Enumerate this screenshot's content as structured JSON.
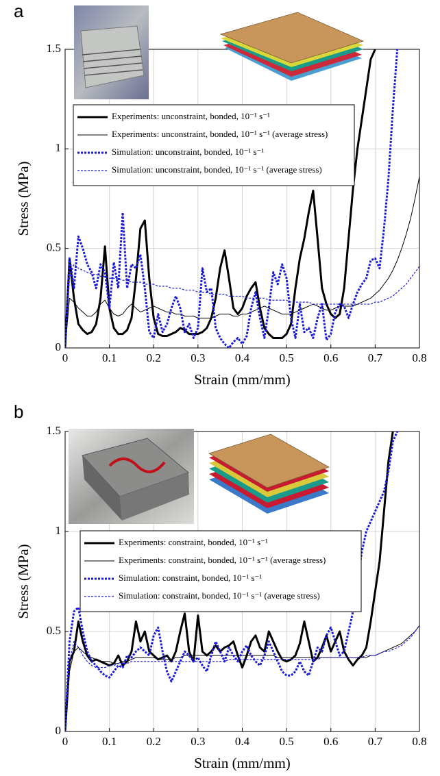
{
  "chart_data": [
    {
      "type": "line",
      "panel_label": "a",
      "xlabel": "Strain (mm/mm)",
      "ylabel": "Stress (MPa)",
      "xlim": [
        0,
        0.8
      ],
      "ylim": [
        0,
        1.5
      ],
      "xticks": [
        0,
        0.1,
        0.2,
        0.3,
        0.4,
        0.5,
        0.6,
        0.7,
        0.8
      ],
      "yticks": [
        0,
        0.5,
        1,
        1.5
      ],
      "grid": true,
      "legend": "upper left",
      "x": [
        0,
        0.01,
        0.02,
        0.03,
        0.04,
        0.05,
        0.06,
        0.07,
        0.08,
        0.09,
        0.1,
        0.11,
        0.12,
        0.13,
        0.14,
        0.15,
        0.16,
        0.17,
        0.18,
        0.19,
        0.2,
        0.21,
        0.22,
        0.23,
        0.24,
        0.25,
        0.26,
        0.27,
        0.28,
        0.29,
        0.3,
        0.31,
        0.32,
        0.33,
        0.34,
        0.35,
        0.36,
        0.37,
        0.38,
        0.39,
        0.4,
        0.41,
        0.42,
        0.43,
        0.44,
        0.45,
        0.46,
        0.47,
        0.48,
        0.49,
        0.5,
        0.51,
        0.52,
        0.53,
        0.54,
        0.55,
        0.56,
        0.57,
        0.58,
        0.59,
        0.6,
        0.61,
        0.62,
        0.63,
        0.64,
        0.65,
        0.66,
        0.67,
        0.68,
        0.69,
        0.7,
        0.71,
        0.72,
        0.73,
        0.74,
        0.75,
        0.76,
        0.77,
        0.78,
        0.79,
        0.8
      ],
      "series": [
        {
          "name": "Experiments: unconstraint, bonded, 10⁻¹ s⁻¹",
          "color": "#000000",
          "line_width": 3,
          "dashed": false,
          "values": [
            0,
            0.45,
            0.25,
            0.12,
            0.09,
            0.07,
            0.08,
            0.12,
            0.25,
            0.51,
            0.2,
            0.1,
            0.07,
            0.07,
            0.09,
            0.15,
            0.35,
            0.6,
            0.64,
            0.35,
            0.15,
            0.07,
            0.06,
            0.06,
            0.07,
            0.08,
            0.1,
            0.09,
            0.07,
            0.07,
            0.07,
            0.08,
            0.1,
            0.15,
            0.25,
            0.4,
            0.49,
            0.35,
            0.2,
            0.17,
            0.2,
            0.26,
            0.3,
            0.33,
            0.2,
            0.1,
            0.07,
            0.05,
            0.05,
            0.05,
            0.07,
            0.12,
            0.3,
            0.45,
            0.55,
            0.68,
            0.79,
            0.55,
            0.3,
            0.22,
            0.17,
            0.15,
            0.17,
            0.3,
            0.55,
            0.8,
            1.0,
            1.15,
            1.3,
            1.45,
            1.5,
            null,
            null,
            null,
            null,
            null,
            null,
            null,
            null,
            null,
            null
          ]
        },
        {
          "name": "Experiments: unconstraint, bonded, 10⁻¹ s⁻¹ (average stress)",
          "color": "#000000",
          "line_width": 1,
          "dashed": false,
          "values": [
            0,
            0.25,
            0.23,
            0.2,
            0.18,
            0.16,
            0.16,
            0.18,
            0.22,
            0.24,
            0.2,
            0.17,
            0.16,
            0.17,
            0.2,
            0.22,
            0.2,
            0.18,
            0.19,
            0.2,
            0.21,
            0.2,
            0.19,
            0.18,
            0.18,
            0.17,
            0.17,
            0.16,
            0.16,
            0.16,
            0.15,
            0.15,
            0.15,
            0.15,
            0.16,
            0.17,
            0.17,
            0.17,
            0.16,
            0.16,
            0.17,
            0.17,
            0.18,
            0.19,
            0.2,
            0.21,
            0.2,
            0.19,
            0.18,
            0.17,
            0.17,
            0.17,
            0.18,
            0.19,
            0.2,
            0.21,
            0.22,
            0.21,
            0.2,
            0.19,
            0.19,
            0.2,
            0.21,
            0.21,
            0.21,
            0.21,
            0.22,
            0.23,
            0.24,
            0.25,
            0.27,
            0.29,
            0.32,
            0.35,
            0.39,
            0.44,
            0.5,
            0.57,
            0.65,
            0.75,
            0.86
          ]
        },
        {
          "name": "Simulation: unconstraint, bonded, 10⁻¹ s⁻¹",
          "color": "#1a1adb",
          "line_width": 3,
          "dashed": true,
          "values": [
            0,
            0.45,
            0.3,
            0.56,
            0.5,
            0.42,
            0.38,
            0.3,
            0.42,
            0.38,
            0.2,
            0.43,
            0.3,
            0.68,
            0.3,
            0.42,
            0.4,
            0.47,
            0.3,
            0.08,
            0.05,
            0.17,
            0.08,
            0.12,
            0.2,
            0.26,
            0.2,
            0.08,
            0.12,
            0.05,
            0.1,
            0.4,
            0.28,
            0.3,
            0.1,
            0.05,
            0.02,
            0,
            0.03,
            0.05,
            0.02,
            0.06,
            0.2,
            0.28,
            0.15,
            0.05,
            0.2,
            0.38,
            0.32,
            0.42,
            0.35,
            0.15,
            0.05,
            0.22,
            0.08,
            0.1,
            0.05,
            0.15,
            0.22,
            0.04,
            0.07,
            0.18,
            0.22,
            0.21,
            0.15,
            0.22,
            0.28,
            0.32,
            0.35,
            0.44,
            0.45,
            0.4,
            0.6,
            0.85,
            1.2,
            1.5,
            null,
            null,
            null,
            null,
            null
          ]
        },
        {
          "name": "Simulation: unconstraint, bonded, 10⁻¹ s⁻¹ (average stress)",
          "color": "#1a1adb",
          "line_width": 1.2,
          "dashed": true,
          "values": [
            0,
            0.35,
            0.42,
            0.4,
            0.39,
            0.38,
            0.37,
            0.37,
            0.36,
            0.36,
            0.35,
            0.35,
            0.35,
            0.34,
            0.34,
            0.33,
            0.33,
            0.33,
            0.32,
            0.32,
            0.32,
            0.31,
            0.31,
            0.31,
            0.3,
            0.3,
            0.3,
            0.29,
            0.29,
            0.29,
            0.28,
            0.28,
            0.28,
            0.27,
            0.27,
            0.27,
            0.27,
            0.26,
            0.26,
            0.26,
            0.26,
            0.25,
            0.25,
            0.25,
            0.25,
            0.25,
            0.24,
            0.24,
            0.24,
            0.24,
            0.24,
            0.23,
            0.23,
            0.23,
            0.23,
            0.23,
            0.22,
            0.22,
            0.22,
            0.22,
            0.22,
            0.22,
            0.22,
            0.22,
            0.22,
            0.22,
            0.22,
            0.22,
            0.22,
            0.22,
            0.23,
            0.23,
            0.24,
            0.25,
            0.26,
            0.28,
            0.3,
            0.32,
            0.35,
            0.38,
            0.41
          ]
        }
      ]
    },
    {
      "type": "line",
      "panel_label": "b",
      "xlabel": "Strain (mm/mm)",
      "ylabel": "Stress (MPa)",
      "xlim": [
        0,
        0.8
      ],
      "ylim": [
        0,
        1.5
      ],
      "xticks": [
        0,
        0.1,
        0.2,
        0.3,
        0.4,
        0.5,
        0.6,
        0.7,
        0.8
      ],
      "yticks": [
        0,
        0.5,
        1,
        1.5
      ],
      "grid": true,
      "legend": "upper left",
      "x": [
        0,
        0.01,
        0.02,
        0.03,
        0.04,
        0.05,
        0.06,
        0.07,
        0.08,
        0.09,
        0.1,
        0.11,
        0.12,
        0.13,
        0.14,
        0.15,
        0.16,
        0.17,
        0.18,
        0.19,
        0.2,
        0.21,
        0.22,
        0.23,
        0.24,
        0.25,
        0.26,
        0.27,
        0.28,
        0.29,
        0.3,
        0.31,
        0.32,
        0.33,
        0.34,
        0.35,
        0.36,
        0.37,
        0.38,
        0.39,
        0.4,
        0.41,
        0.42,
        0.43,
        0.44,
        0.45,
        0.46,
        0.47,
        0.48,
        0.49,
        0.5,
        0.51,
        0.52,
        0.53,
        0.54,
        0.55,
        0.56,
        0.57,
        0.58,
        0.59,
        0.6,
        0.61,
        0.62,
        0.63,
        0.64,
        0.65,
        0.66,
        0.67,
        0.68,
        0.69,
        0.7,
        0.71,
        0.72,
        0.73,
        0.74,
        0.75,
        0.76,
        0.77,
        0.78,
        0.79,
        0.8
      ],
      "series": [
        {
          "name": "Experiments: constraint, bonded, 10⁻¹ s⁻¹",
          "color": "#000000",
          "line_width": 3,
          "dashed": false,
          "values": [
            0,
            0.35,
            0.4,
            0.55,
            0.45,
            0.38,
            0.35,
            0.36,
            0.35,
            0.34,
            0.33,
            0.34,
            0.38,
            0.33,
            0.35,
            0.4,
            0.55,
            0.45,
            0.5,
            0.4,
            0.38,
            0.36,
            0.37,
            0.38,
            0.35,
            0.4,
            0.5,
            0.59,
            0.4,
            0.35,
            0.58,
            0.4,
            0.38,
            0.4,
            0.43,
            0.4,
            0.42,
            0.43,
            0.45,
            0.38,
            0.32,
            0.38,
            0.45,
            0.48,
            0.42,
            0.4,
            0.5,
            0.45,
            0.4,
            0.36,
            0.35,
            0.36,
            0.38,
            0.44,
            0.55,
            0.45,
            0.35,
            0.37,
            0.42,
            0.48,
            0.4,
            0.45,
            0.5,
            0.4,
            0.36,
            0.33,
            0.36,
            0.38,
            0.42,
            0.55,
            0.7,
            0.85,
            1.1,
            1.35,
            1.5,
            null,
            null,
            null,
            null,
            null,
            null
          ]
        },
        {
          "name": "Experiments: constraint, bonded, 10⁻¹ s⁻¹ (average stress)",
          "color": "#000000",
          "line_width": 1,
          "dashed": false,
          "values": [
            0,
            0.3,
            0.4,
            0.42,
            0.4,
            0.38,
            0.37,
            0.36,
            0.35,
            0.35,
            0.35,
            0.34,
            0.34,
            0.35,
            0.35,
            0.36,
            0.37,
            0.37,
            0.37,
            0.37,
            0.37,
            0.36,
            0.36,
            0.36,
            0.36,
            0.37,
            0.37,
            0.38,
            0.38,
            0.38,
            0.38,
            0.38,
            0.38,
            0.38,
            0.38,
            0.38,
            0.38,
            0.38,
            0.38,
            0.38,
            0.38,
            0.38,
            0.38,
            0.38,
            0.38,
            0.38,
            0.38,
            0.38,
            0.37,
            0.37,
            0.37,
            0.37,
            0.37,
            0.37,
            0.37,
            0.37,
            0.37,
            0.37,
            0.37,
            0.37,
            0.37,
            0.37,
            0.37,
            0.37,
            0.37,
            0.37,
            0.37,
            0.37,
            0.37,
            0.38,
            0.38,
            0.39,
            0.4,
            0.41,
            0.42,
            0.43,
            0.44,
            0.46,
            0.48,
            0.5,
            0.53
          ]
        },
        {
          "name": "Simulation: constraint, bonded, 10⁻¹ s⁻¹",
          "color": "#1a1adb",
          "line_width": 3,
          "dashed": true,
          "values": [
            0,
            0.45,
            0.6,
            0.62,
            0.5,
            0.4,
            0.35,
            0.33,
            0.3,
            0.28,
            0.27,
            0.3,
            0.33,
            0.32,
            0.38,
            0.37,
            0.4,
            0.42,
            0.4,
            0.38,
            0.48,
            0.52,
            0.4,
            0.3,
            0.25,
            0.3,
            0.35,
            0.4,
            0.38,
            0.35,
            0.37,
            0.33,
            0.3,
            0.38,
            0.45,
            0.4,
            0.35,
            0.42,
            0.38,
            0.35,
            0.4,
            0.43,
            0.38,
            0.35,
            0.33,
            0.38,
            0.45,
            0.4,
            0.35,
            0.3,
            0.28,
            0.28,
            0.3,
            0.35,
            0.3,
            0.28,
            0.35,
            0.42,
            0.4,
            0.48,
            0.52,
            0.45,
            0.38,
            0.4,
            0.5,
            0.6,
            0.75,
            0.9,
            1.0,
            1.05,
            1.1,
            1.15,
            1.2,
            1.3,
            1.45,
            1.5,
            null,
            null,
            null,
            null,
            null
          ]
        },
        {
          "name": "Simulation: constraint, bonded, 10⁻¹ s⁻¹ (average stress)",
          "color": "#1a1adb",
          "line_width": 1.2,
          "dashed": true,
          "values": [
            0,
            0.35,
            0.45,
            0.42,
            0.38,
            0.35,
            0.33,
            0.32,
            0.32,
            0.32,
            0.33,
            0.33,
            0.34,
            0.34,
            0.34,
            0.35,
            0.35,
            0.35,
            0.35,
            0.35,
            0.35,
            0.35,
            0.35,
            0.35,
            0.35,
            0.35,
            0.35,
            0.35,
            0.35,
            0.35,
            0.35,
            0.35,
            0.35,
            0.35,
            0.35,
            0.35,
            0.35,
            0.36,
            0.36,
            0.36,
            0.36,
            0.36,
            0.36,
            0.36,
            0.36,
            0.36,
            0.36,
            0.36,
            0.36,
            0.36,
            0.36,
            0.36,
            0.36,
            0.36,
            0.36,
            0.36,
            0.36,
            0.36,
            0.37,
            0.37,
            0.37,
            0.37,
            0.37,
            0.37,
            0.37,
            0.37,
            0.37,
            0.37,
            0.38,
            0.38,
            0.38,
            0.39,
            0.4,
            0.4,
            0.41,
            0.42,
            0.43,
            0.45,
            0.47,
            0.5,
            0.53
          ]
        }
      ]
    }
  ]
}
